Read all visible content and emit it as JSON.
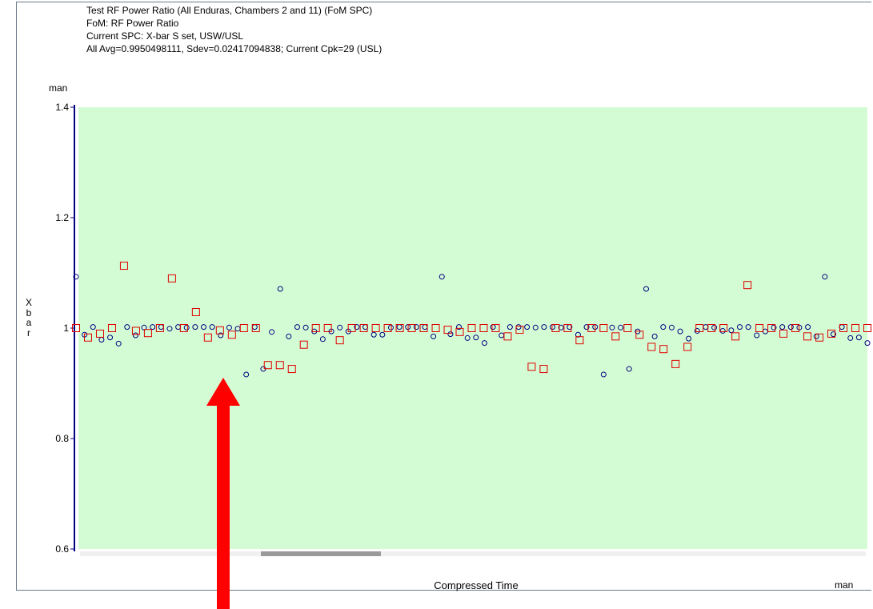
{
  "chart_data": {
    "type": "scatter",
    "title_lines": [
      "Test RF Power Ratio (All Enduras, Chambers 2 and 11) (FoM SPC)",
      "FoM: RF Power Ratio",
      "Current SPC: X-bar S set, USW/USL",
      "All Avg=0.9950498111, Sdev=0.02417094838;    Current Cpk=29 (USL)"
    ],
    "y_unit_label": "man",
    "x_unit_label": "man",
    "ylabel": "Xbar",
    "xlabel": "Compressed Time",
    "ylim": [
      0.6,
      1.4
    ],
    "yticks": [
      "0.6",
      "0.8",
      "1",
      "1.2",
      "1.4"
    ],
    "plot_background": "#d4fcd4",
    "x_axis": "compressed time (index)",
    "series": [
      {
        "marker": "circle",
        "color": "#000080",
        "points": [
          [
            0,
            1.093
          ],
          [
            1,
            0.988
          ],
          [
            2,
            1.002
          ],
          [
            3,
            0.979
          ],
          [
            4,
            0.983
          ],
          [
            5,
            0.972
          ],
          [
            6,
            1.002
          ],
          [
            7,
            0.987
          ],
          [
            8,
            1.001
          ],
          [
            9,
            1.002
          ],
          [
            10,
            1.002
          ],
          [
            11,
            0.999
          ],
          [
            12,
            1.002
          ],
          [
            13,
            1.001
          ],
          [
            14,
            1.002
          ],
          [
            15,
            1.002
          ],
          [
            16,
            1.002
          ],
          [
            17,
            0.987
          ],
          [
            18,
            1.001
          ],
          [
            19,
            0.999
          ],
          [
            20,
            0.916
          ],
          [
            21,
            1.002
          ],
          [
            22,
            0.926
          ],
          [
            23,
            0.993
          ],
          [
            24,
            1.071
          ],
          [
            25,
            0.985
          ],
          [
            26,
            1.002
          ],
          [
            27,
            1.001
          ],
          [
            28,
            0.994
          ],
          [
            29,
            0.98
          ],
          [
            30,
            0.994
          ],
          [
            31,
            1.001
          ],
          [
            32,
            0.994
          ],
          [
            33,
            1.002
          ],
          [
            34,
            1.002
          ],
          [
            35,
            0.988
          ],
          [
            36,
            0.988
          ],
          [
            37,
            1.001
          ],
          [
            38,
            1.002
          ],
          [
            39,
            1.002
          ],
          [
            40,
            1.002
          ],
          [
            41,
            1.002
          ],
          [
            42,
            0.985
          ],
          [
            43,
            1.093
          ],
          [
            44,
            0.989
          ],
          [
            45,
            1.002
          ],
          [
            46,
            0.982
          ],
          [
            47,
            0.983
          ],
          [
            48,
            0.973
          ],
          [
            49,
            1.002
          ],
          [
            50,
            0.987
          ],
          [
            51,
            1.002
          ],
          [
            52,
            1.002
          ],
          [
            53,
            1.002
          ],
          [
            54,
            1.001
          ],
          [
            55,
            1.002
          ],
          [
            56,
            1.002
          ],
          [
            57,
            1.001
          ],
          [
            58,
            1.002
          ],
          [
            59,
            0.988
          ],
          [
            60,
            1.002
          ],
          [
            61,
            1.002
          ],
          [
            62,
            0.916
          ],
          [
            63,
            1.001
          ],
          [
            64,
            1.001
          ],
          [
            65,
            0.926
          ],
          [
            66,
            0.994
          ],
          [
            67,
            1.071
          ],
          [
            68,
            0.985
          ],
          [
            69,
            1.002
          ],
          [
            70,
            1.001
          ],
          [
            71,
            0.994
          ],
          [
            72,
            0.981
          ],
          [
            73,
            0.995
          ],
          [
            74,
            1.002
          ],
          [
            75,
            1.001
          ],
          [
            76,
            0.995
          ],
          [
            77,
            0.996
          ],
          [
            78,
            1.002
          ],
          [
            79,
            1.002
          ],
          [
            80,
            0.987
          ],
          [
            81,
            0.994
          ],
          [
            82,
            1.001
          ],
          [
            83,
            1.002
          ],
          [
            84,
            1.002
          ],
          [
            85,
            1.001
          ],
          [
            86,
            1.002
          ],
          [
            87,
            0.985
          ],
          [
            88,
            1.093
          ],
          [
            89,
            0.989
          ],
          [
            90,
            1.002
          ],
          [
            91,
            0.982
          ],
          [
            92,
            0.983
          ],
          [
            93,
            0.973
          ]
        ]
      },
      {
        "marker": "square",
        "color": "#e00000",
        "points": [
          [
            0,
            1.0
          ],
          [
            1,
            0.983
          ],
          [
            2,
            0.99
          ],
          [
            3,
            1.0
          ],
          [
            4,
            1.113
          ],
          [
            5,
            0.995
          ],
          [
            6,
            0.991
          ],
          [
            7,
            1.0
          ],
          [
            8,
            1.09
          ],
          [
            9,
            1.0
          ],
          [
            10,
            1.029
          ],
          [
            11,
            0.983
          ],
          [
            12,
            0.996
          ],
          [
            13,
            0.988
          ],
          [
            14,
            1.0
          ],
          [
            15,
            1.0
          ],
          [
            16,
            0.933
          ],
          [
            17,
            0.933
          ],
          [
            18,
            0.926
          ],
          [
            19,
            0.97
          ],
          [
            20,
            1.0
          ],
          [
            21,
            1.0
          ],
          [
            22,
            0.978
          ],
          [
            23,
            1.0
          ],
          [
            24,
            1.0
          ],
          [
            25,
            1.0
          ],
          [
            26,
            1.0
          ],
          [
            27,
            1.0
          ],
          [
            28,
            1.0
          ],
          [
            29,
            1.0
          ],
          [
            30,
            1.0
          ],
          [
            31,
            0.997
          ],
          [
            32,
            0.993
          ],
          [
            33,
            1.0
          ],
          [
            34,
            1.0
          ],
          [
            35,
            1.0
          ],
          [
            36,
            0.985
          ],
          [
            37,
            0.997
          ],
          [
            38,
            0.93
          ],
          [
            39,
            0.926
          ],
          [
            40,
            1.0
          ],
          [
            41,
            1.0
          ],
          [
            42,
            0.978
          ],
          [
            43,
            1.0
          ],
          [
            44,
            1.0
          ],
          [
            45,
            0.985
          ],
          [
            46,
            1.0
          ],
          [
            47,
            0.988
          ],
          [
            48,
            0.966
          ],
          [
            49,
            0.962
          ],
          [
            50,
            0.935
          ],
          [
            51,
            0.966
          ],
          [
            52,
            1.0
          ],
          [
            53,
            1.0
          ],
          [
            54,
            1.0
          ],
          [
            55,
            0.985
          ],
          [
            56,
            1.078
          ],
          [
            57,
            1.0
          ],
          [
            58,
            1.0
          ],
          [
            59,
            0.99
          ],
          [
            60,
            1.0
          ],
          [
            61,
            0.985
          ],
          [
            62,
            0.983
          ],
          [
            63,
            0.99
          ],
          [
            64,
            1.0
          ],
          [
            65,
            1.0
          ],
          [
            66,
            1.0
          ]
        ]
      }
    ],
    "grid": false,
    "legend": "none"
  },
  "annotation": {
    "arrow_color": "#ff0000"
  }
}
